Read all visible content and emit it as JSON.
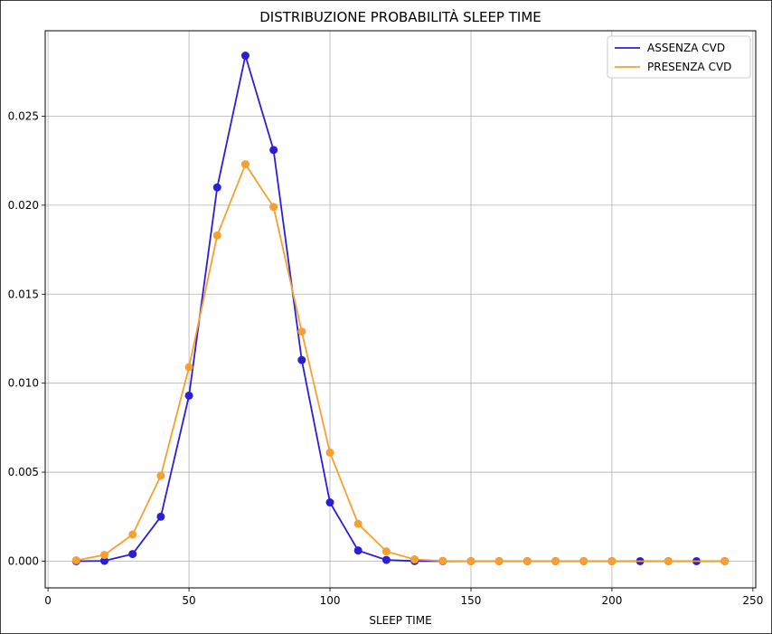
{
  "chart_data": {
    "type": "line",
    "title": "DISTRIBUZIONE PROBABILITÀ SLEEP TIME",
    "xlabel": "SLEEP TIME",
    "ylabel": "",
    "xlim": [
      -1,
      251
    ],
    "ylim": [
      -0.0015,
      0.0298
    ],
    "xticks": [
      0,
      50,
      100,
      150,
      200,
      250
    ],
    "yticks": [
      0.0,
      0.005,
      0.01,
      0.015,
      0.02,
      0.025
    ],
    "ytick_labels": [
      "0.000",
      "0.005",
      "0.010",
      "0.015",
      "0.020",
      "0.025"
    ],
    "grid": true,
    "legend_position": "top-right",
    "series": [
      {
        "name": "ASSENZA CVD",
        "color": "#2b1fd6",
        "x": [
          10,
          20,
          30,
          40,
          50,
          60,
          70,
          80,
          90,
          100,
          110,
          120,
          130,
          140,
          150,
          160,
          170,
          180,
          190,
          200,
          210,
          220,
          230,
          240
        ],
        "y": [
          0.0,
          2e-05,
          0.0004,
          0.0025,
          0.0093,
          0.021,
          0.0284,
          0.0231,
          0.0113,
          0.0033,
          0.0006,
          7e-05,
          1e-05,
          0.0,
          0.0,
          0.0,
          0.0,
          0.0,
          0.0,
          0.0,
          0.0,
          0.0,
          0.0,
          0.0
        ]
      },
      {
        "name": "PRESENZA CVD",
        "color": "#f5a030",
        "x": [
          10,
          20,
          30,
          40,
          50,
          60,
          70,
          80,
          90,
          100,
          110,
          120,
          130,
          140,
          150,
          160,
          170,
          180,
          190,
          200,
          220,
          240
        ],
        "y": [
          5e-05,
          0.00035,
          0.0015,
          0.0048,
          0.0109,
          0.0183,
          0.0223,
          0.0199,
          0.0129,
          0.0061,
          0.0021,
          0.00055,
          0.0001,
          2e-05,
          0.0,
          0.0,
          0.0,
          0.0,
          0.0,
          0.0,
          0.0,
          0.0
        ]
      }
    ]
  }
}
